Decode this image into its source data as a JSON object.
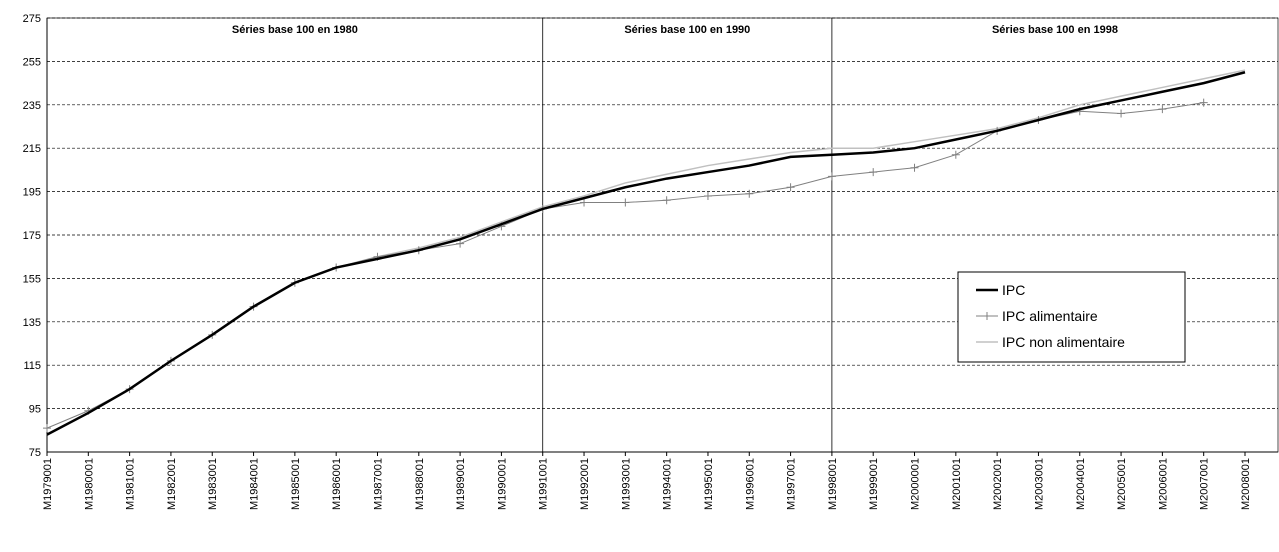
{
  "chart_data": {
    "type": "line",
    "annotations": [
      "Séries base 100 en 1980",
      "Séries base 100 en 1990",
      "Séries base 100 en 1998"
    ],
    "categories": [
      "M1979001",
      "M1980001",
      "M1981001",
      "M1982001",
      "M1983001",
      "M1984001",
      "M1985001",
      "M1986001",
      "M1987001",
      "M1988001",
      "M1989001",
      "M1990001",
      "M1991001",
      "M1992001",
      "M1993001",
      "M1994001",
      "M1995001",
      "M1996001",
      "M1997001",
      "M1998001",
      "M1999001",
      "M2000001",
      "M2001001",
      "M2002001",
      "M2003001",
      "M2004001",
      "M2005001",
      "M2006001",
      "M2007001",
      "M2008001"
    ],
    "series": [
      {
        "name": "IPC",
        "color": "#000000",
        "values": [
          83,
          93,
          104,
          117,
          129,
          142,
          153,
          160,
          164,
          168,
          173,
          180,
          187,
          192,
          197,
          201,
          204,
          207,
          211,
          212,
          213,
          215,
          219,
          223,
          228,
          233,
          237,
          241,
          245,
          250
        ]
      },
      {
        "name": "IPC alimentaire",
        "color": "#808080",
        "values": [
          86,
          94,
          104,
          117,
          129,
          142,
          153,
          160,
          165,
          168,
          171,
          179,
          187,
          190,
          190,
          191,
          193,
          194,
          197,
          202,
          204,
          206,
          212,
          223,
          228,
          232,
          231,
          233,
          236,
          null
        ]
      },
      {
        "name": "IPC non alimentaire",
        "color": "#c0c0c0",
        "values": [
          83,
          93,
          104,
          117,
          129,
          142,
          153,
          160,
          165,
          169,
          174,
          181,
          188,
          193,
          199,
          203,
          207,
          210,
          213,
          215,
          215,
          218,
          221,
          224,
          229,
          235,
          239,
          243,
          247,
          251
        ]
      }
    ],
    "ylim": [
      75,
      275
    ],
    "yticks": [
      75,
      95,
      115,
      135,
      155,
      175,
      195,
      215,
      235,
      255,
      275
    ],
    "grid": true,
    "legend": "right"
  }
}
